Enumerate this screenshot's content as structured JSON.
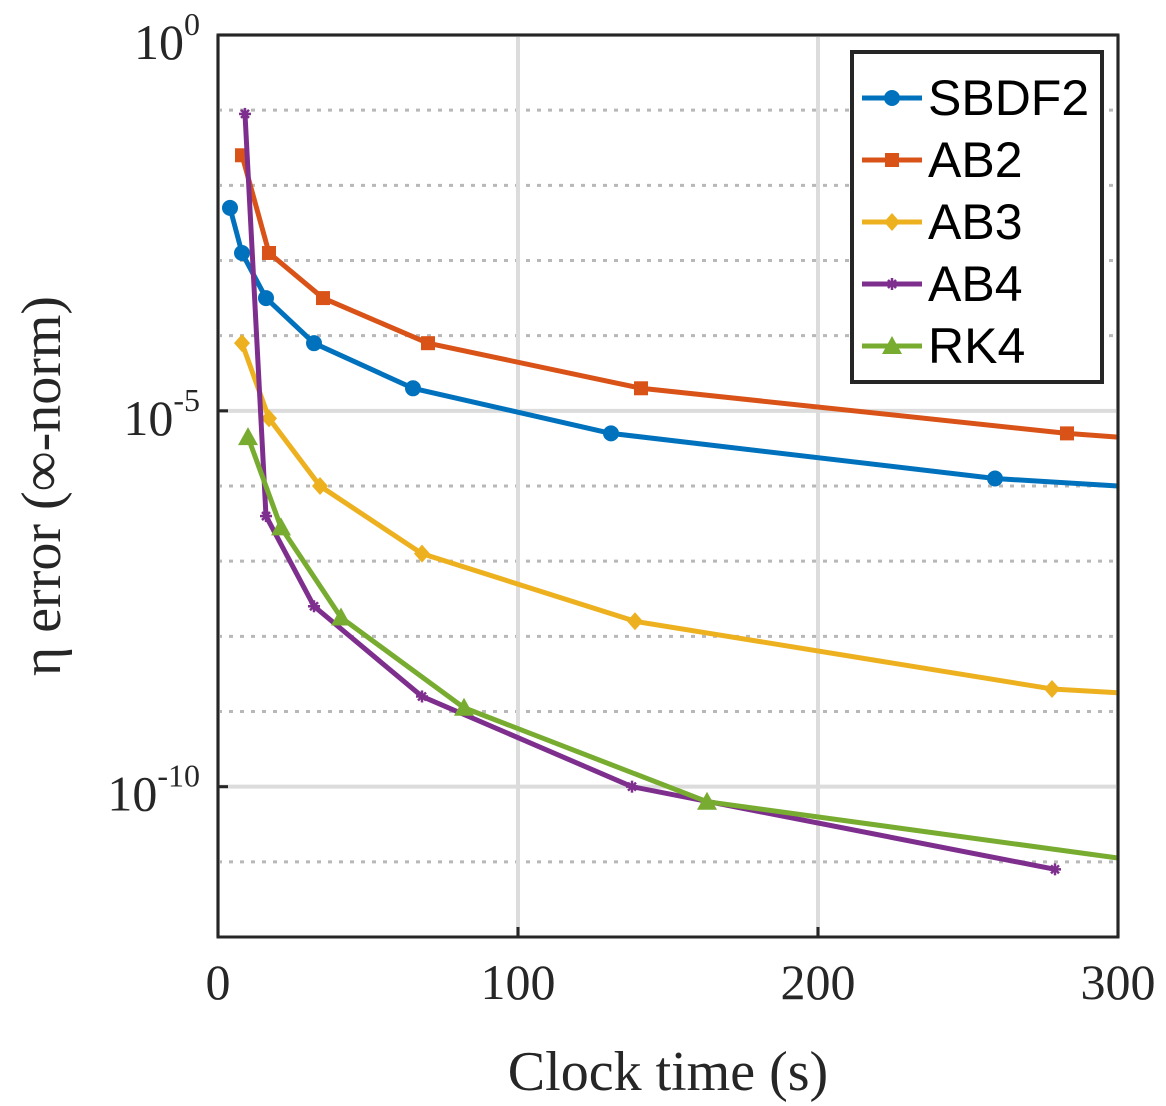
{
  "chart_data": {
    "type": "line",
    "xlabel": "Clock time (s)",
    "ylabel": "η error (∞-norm)",
    "yscale": "log",
    "xlim": [
      0,
      300
    ],
    "ylim_exponent": [
      -12,
      0
    ],
    "x_ticks": [
      {
        "value": 0,
        "label": "0"
      },
      {
        "value": 100,
        "label": "100"
      },
      {
        "value": 200,
        "label": "200"
      },
      {
        "value": 300,
        "label": "300"
      }
    ],
    "y_ticks": [
      {
        "exponent": 0,
        "base": "10",
        "power": "0"
      },
      {
        "exponent": -5,
        "base": "10",
        "power": "-5"
      },
      {
        "exponent": -10,
        "base": "10",
        "power": "-10"
      }
    ],
    "grid": true,
    "legend_position": "top-right",
    "series": [
      {
        "name": "SBDF2",
        "color": "#0072BD",
        "marker": "circle",
        "x": [
          4,
          8,
          16,
          32,
          65,
          131,
          259,
          300
        ],
        "y_exp": [
          -2.3,
          -2.9,
          -3.5,
          -4.1,
          -4.7,
          -5.3,
          -5.9,
          -6.0
        ]
      },
      {
        "name": "AB2",
        "color": "#D95319",
        "marker": "square",
        "x": [
          8,
          17,
          35,
          70,
          141,
          283,
          300
        ],
        "y_exp": [
          -1.6,
          -2.9,
          -3.5,
          -4.1,
          -4.7,
          -5.3,
          -5.35
        ]
      },
      {
        "name": "AB3",
        "color": "#EDB120",
        "marker": "diamond",
        "x": [
          8,
          17,
          34,
          68,
          139,
          278,
          300
        ],
        "y_exp": [
          -4.1,
          -5.1,
          -6.0,
          -6.9,
          -7.8,
          -8.7,
          -8.75
        ]
      },
      {
        "name": "AB4",
        "color": "#7E2F8E",
        "marker": "asterisk",
        "x": [
          9,
          16,
          32,
          68,
          138,
          279
        ],
        "y_exp": [
          -1.05,
          -6.4,
          -7.6,
          -8.8,
          -10.0,
          -11.1
        ]
      },
      {
        "name": "RK4",
        "color": "#77AC30",
        "marker": "triangle",
        "x": [
          10,
          21,
          41,
          82,
          163,
          300
        ],
        "y_exp": [
          -5.35,
          -6.55,
          -7.75,
          -8.95,
          -10.2,
          -10.95
        ]
      }
    ]
  }
}
